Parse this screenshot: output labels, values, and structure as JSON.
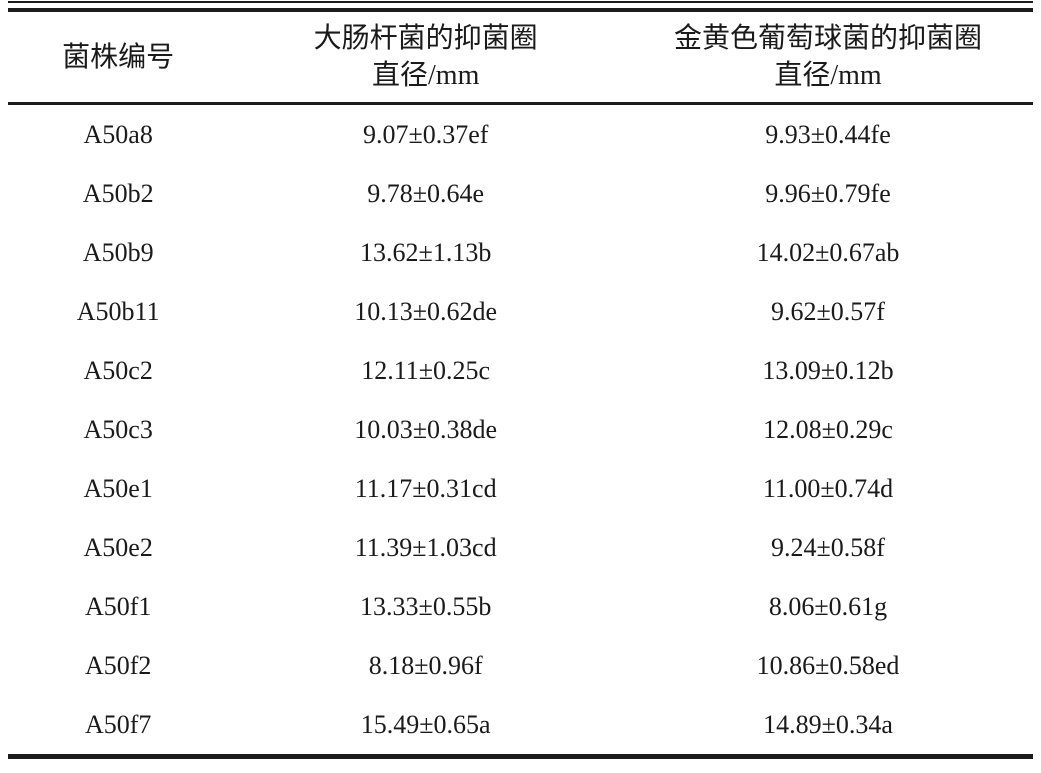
{
  "table": {
    "title_semantic": "antibacterial inhibition zone diameters by strain",
    "headers": {
      "strain": "菌株编号",
      "ecoli_line1": "大肠杆菌的抑菌圈",
      "ecoli_line2": "直径/mm",
      "saureus_line1": "金黄色葡萄球菌的抑菌圈",
      "saureus_line2": "直径/mm"
    },
    "rows": [
      {
        "strain": "A50a8",
        "ecoli": "9.07±0.37ef",
        "saureus": "9.93±0.44fe"
      },
      {
        "strain": "A50b2",
        "ecoli": "9.78±0.64e",
        "saureus": "9.96±0.79fe"
      },
      {
        "strain": "A50b9",
        "ecoli": "13.62±1.13b",
        "saureus": "14.02±0.67ab"
      },
      {
        "strain": "A50b11",
        "ecoli": "10.13±0.62de",
        "saureus": "9.62±0.57f"
      },
      {
        "strain": "A50c2",
        "ecoli": "12.11±0.25c",
        "saureus": "13.09±0.12b"
      },
      {
        "strain": "A50c3",
        "ecoli": "10.03±0.38de",
        "saureus": "12.08±0.29c"
      },
      {
        "strain": "A50e1",
        "ecoli": "11.17±0.31cd",
        "saureus": "11.00±0.74d"
      },
      {
        "strain": "A50e2",
        "ecoli": "11.39±1.03cd",
        "saureus": "9.24±0.58f"
      },
      {
        "strain": "A50f1",
        "ecoli": "13.33±0.55b",
        "saureus": "8.06±0.61g"
      },
      {
        "strain": "A50f2",
        "ecoli": "8.18±0.96f",
        "saureus": "10.86±0.58ed"
      },
      {
        "strain": "A50f7",
        "ecoli": "15.49±0.65a",
        "saureus": "14.89±0.34a"
      }
    ],
    "colors": {
      "rule": "#1c1c1c",
      "text": "#1a1a1a",
      "background": "#ffffff"
    }
  }
}
